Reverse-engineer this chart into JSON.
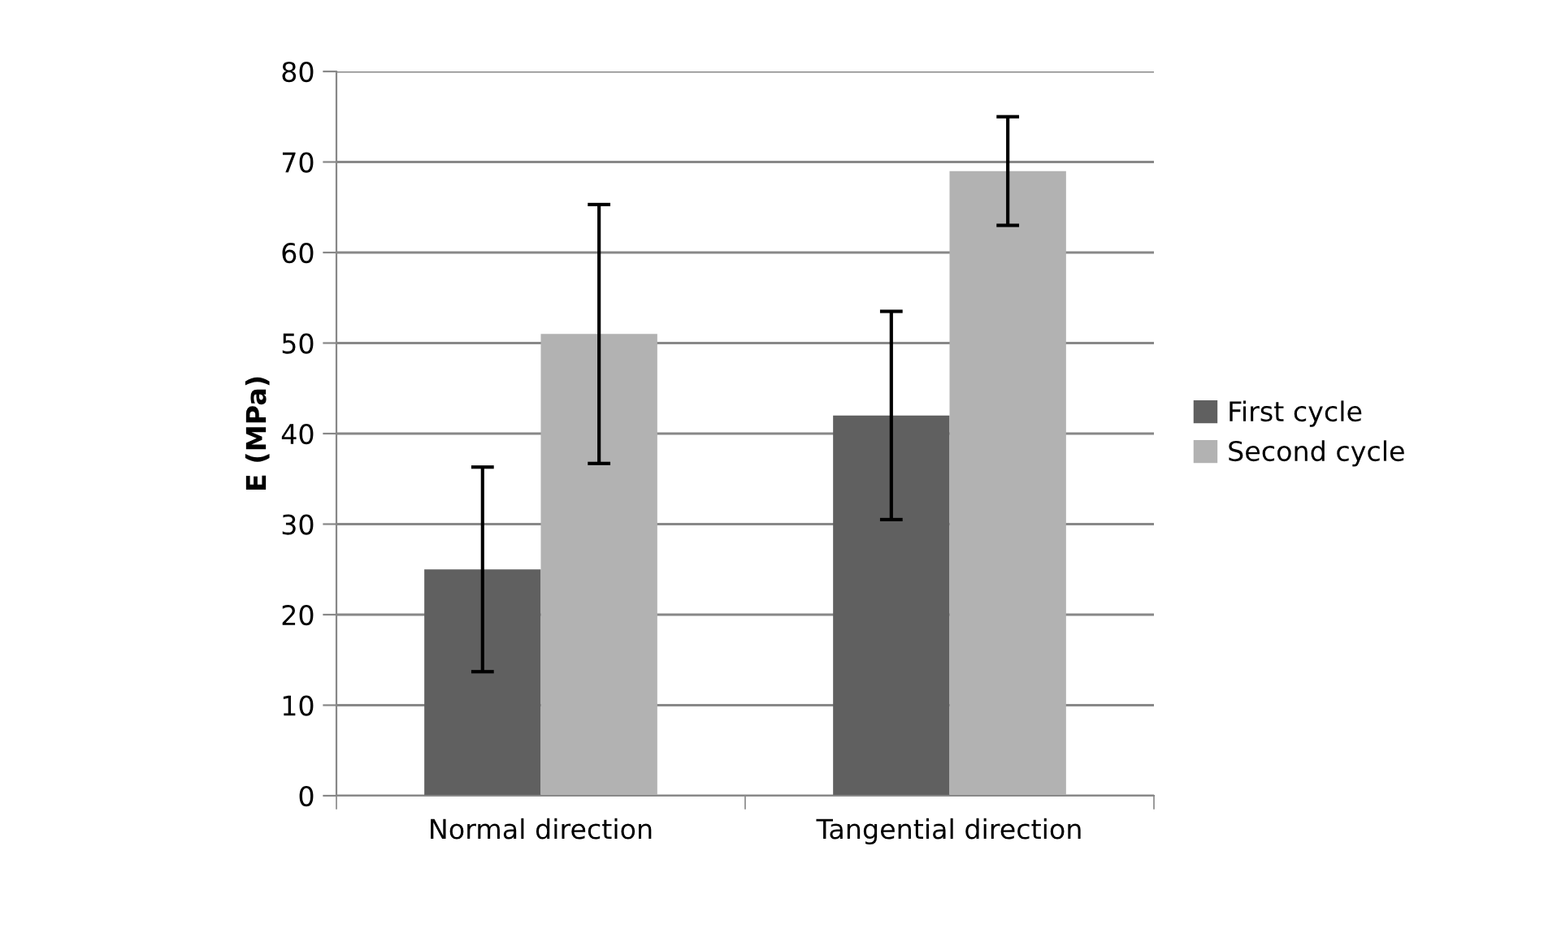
{
  "chart_data": {
    "type": "bar",
    "ylabel": "E (MPa)",
    "categories": [
      "Normal direction",
      "Tangential direction"
    ],
    "series": [
      {
        "name": "First cycle",
        "color": "#606060",
        "values": [
          25,
          42
        ],
        "errors": [
          11.3,
          11.5
        ]
      },
      {
        "name": "Second cycle",
        "color": "#b2b2b2",
        "values": [
          51,
          69
        ],
        "errors": [
          14.3,
          6
        ]
      }
    ],
    "ylim": [
      0,
      80
    ],
    "yticks": [
      0,
      10,
      20,
      30,
      40,
      50,
      60,
      70,
      80
    ],
    "grid": "y",
    "legend": "right"
  }
}
